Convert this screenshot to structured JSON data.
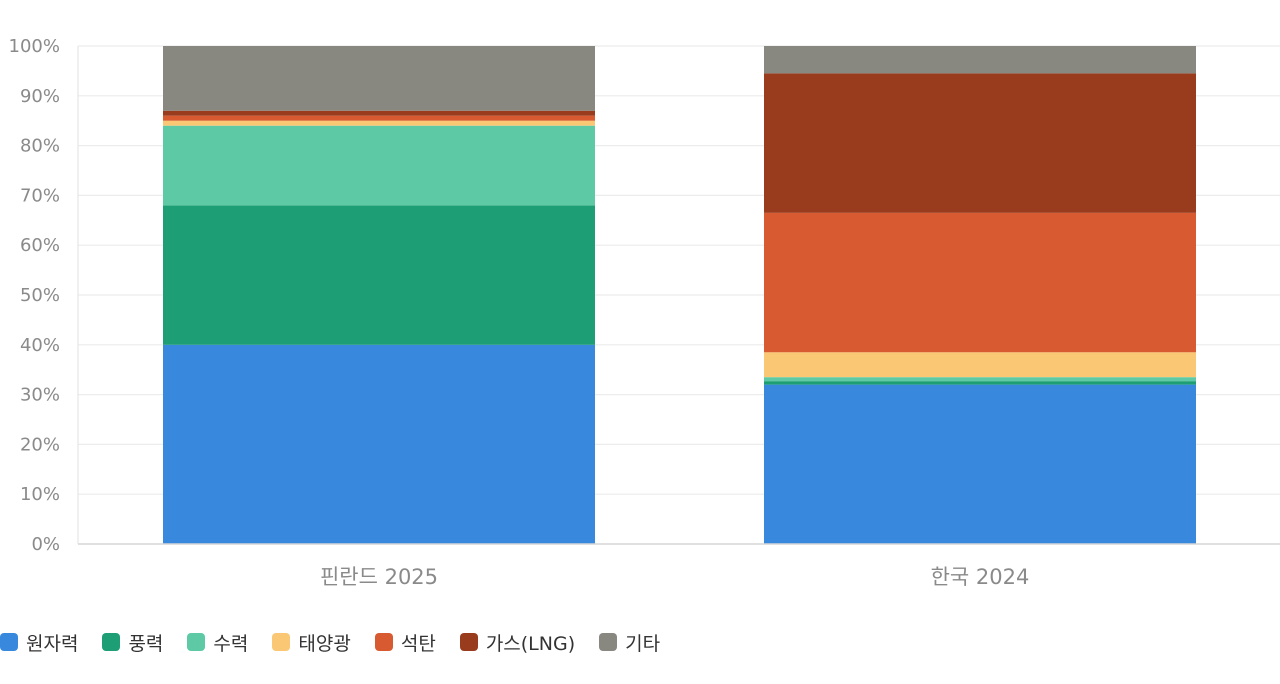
{
  "chart_data": {
    "type": "bar",
    "stacked": true,
    "y_tick_labels": [
      "0%",
      "10%",
      "20%",
      "30%",
      "40%",
      "50%",
      "60%",
      "70%",
      "80%",
      "90%",
      "100%"
    ],
    "ylim": [
      0,
      100
    ],
    "grid": true,
    "legend_position": "bottom-left",
    "categories": [
      "핀란드 2025",
      "한국 2024"
    ],
    "series": [
      {
        "name": "원자력",
        "color": "#3889DE",
        "values": [
          40,
          32
        ]
      },
      {
        "name": "풍력",
        "color": "#1E9E75",
        "values": [
          28,
          0.7
        ]
      },
      {
        "name": "수력",
        "color": "#5DCAA5",
        "values": [
          16,
          0.8
        ]
      },
      {
        "name": "태양광",
        "color": "#FAC775",
        "values": [
          1,
          5
        ]
      },
      {
        "name": "석탄",
        "color": "#D85A30",
        "values": [
          1,
          28
        ]
      },
      {
        "name": "가스(LNG)",
        "color": "#993C1D",
        "values": [
          1,
          28
        ]
      },
      {
        "name": "기타",
        "color": "#888780",
        "values": [
          13,
          5.5
        ]
      }
    ]
  }
}
